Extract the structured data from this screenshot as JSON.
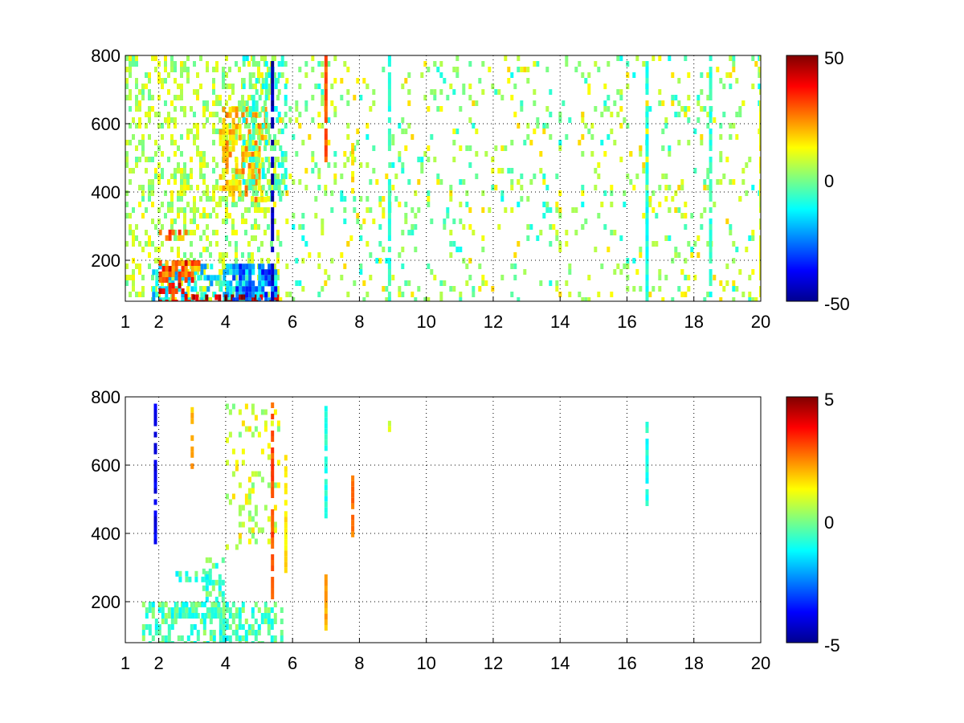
{
  "chart_data": [
    {
      "type": "heatmap",
      "title": "",
      "xlabel": "",
      "ylabel": "",
      "xlim": [
        1,
        20
      ],
      "ylim": [
        80,
        800
      ],
      "x_ticks": [
        "1",
        "2",
        "4",
        "6",
        "8",
        "10",
        "12",
        "14",
        "16",
        "18",
        "20"
      ],
      "x_tick_values": [
        1,
        2,
        4,
        6,
        8,
        10,
        12,
        14,
        16,
        18,
        20
      ],
      "y_ticks": [
        "200",
        "400",
        "600",
        "800"
      ],
      "y_tick_values": [
        200,
        400,
        600,
        800
      ],
      "grid": true,
      "colormap": "jet",
      "colorbar": {
        "location": "right",
        "clim": [
          -50,
          50
        ],
        "tick_labels": [
          "50",
          "0",
          "-50"
        ],
        "tick_values": [
          50,
          0,
          -50
        ]
      },
      "regions": [
        {
          "x": [
            1.0,
            5.6
          ],
          "y": [
            80,
            800
          ],
          "value": 5,
          "coverage": 0.35
        },
        {
          "x": [
            1.8,
            5.5
          ],
          "y": [
            80,
            190
          ],
          "value": -15,
          "coverage": 0.55
        },
        {
          "x": [
            2.0,
            3.0
          ],
          "y": [
            80,
            200
          ],
          "value": 35,
          "coverage": 0.4
        },
        {
          "x": [
            2.0,
            3.2
          ],
          "y": [
            160,
            200
          ],
          "value": 25,
          "coverage": 0.6
        },
        {
          "x": [
            2.0,
            2.8
          ],
          "y": [
            265,
            290
          ],
          "value": 25,
          "coverage": 0.5
        },
        {
          "x": [
            3.0,
            5.5
          ],
          "y": [
            80,
            100
          ],
          "value": 45,
          "coverage": 0.5
        },
        {
          "x": [
            4.2,
            5.5
          ],
          "y": [
            80,
            190
          ],
          "value": -30,
          "coverage": 0.45
        },
        {
          "x": [
            3.8,
            5.2
          ],
          "y": [
            380,
            650
          ],
          "value": 18,
          "coverage": 0.55
        },
        {
          "x": [
            4.5,
            5.8
          ],
          "y": [
            400,
            800
          ],
          "value": -5,
          "coverage": 0.3
        },
        {
          "x": [
            5.5,
            20.0
          ],
          "y": [
            80,
            800
          ],
          "value": -3,
          "coverage": 0.06
        },
        {
          "x": [
            5.5,
            20.0
          ],
          "y": [
            80,
            800
          ],
          "value": 8,
          "coverage": 0.06
        }
      ],
      "stripes": [
        {
          "x": 5.4,
          "y": [
            80,
            800
          ],
          "value": -45
        },
        {
          "x": 7.0,
          "y": [
            500,
            800
          ],
          "value": 30
        },
        {
          "x": 7.8,
          "y": [
            400,
            560
          ],
          "value": 15
        },
        {
          "x": 8.9,
          "y": [
            80,
            800
          ],
          "value": -8
        },
        {
          "x": 16.6,
          "y": [
            80,
            800
          ],
          "value": 12
        },
        {
          "x": 16.6,
          "y": [
            80,
            800
          ],
          "value": -10
        },
        {
          "x": 18.5,
          "y": [
            80,
            800
          ],
          "value": -8
        },
        {
          "x": 20.0,
          "y": [
            80,
            800
          ],
          "value": 10
        }
      ]
    },
    {
      "type": "heatmap",
      "title": "",
      "xlabel": "",
      "ylabel": "",
      "xlim": [
        1,
        20
      ],
      "ylim": [
        80,
        800
      ],
      "x_ticks": [
        "1",
        "2",
        "4",
        "6",
        "8",
        "10",
        "12",
        "14",
        "16",
        "18",
        "20"
      ],
      "x_tick_values": [
        1,
        2,
        4,
        6,
        8,
        10,
        12,
        14,
        16,
        18,
        20
      ],
      "y_ticks": [
        "200",
        "400",
        "600",
        "800"
      ],
      "y_tick_values": [
        200,
        400,
        600,
        800
      ],
      "grid": true,
      "colormap": "jet",
      "colorbar": {
        "location": "right",
        "clim": [
          -5,
          5
        ],
        "tick_labels": [
          "5",
          "0",
          "-5"
        ],
        "tick_values": [
          5,
          0,
          -5
        ]
      },
      "regions": [
        {
          "x": [
            1.5,
            5.7
          ],
          "y": [
            80,
            200
          ],
          "value": -0.5,
          "coverage": 0.55
        },
        {
          "x": [
            2.5,
            3.8
          ],
          "y": [
            160,
            200
          ],
          "value": -0.5,
          "coverage": 0.7
        },
        {
          "x": [
            2.5,
            3.5
          ],
          "y": [
            260,
            290
          ],
          "value": -0.5,
          "coverage": 0.4
        },
        {
          "x": [
            3.3,
            3.9
          ],
          "y": [
            200,
            330
          ],
          "value": -0.5,
          "coverage": 0.45
        },
        {
          "x": [
            4.0,
            5.6
          ],
          "y": [
            360,
            780
          ],
          "value": 0.8,
          "coverage": 0.18
        }
      ],
      "stripes": [
        {
          "x": 1.9,
          "y": [
            380,
            780
          ],
          "value": -4
        },
        {
          "x": 3.0,
          "y": [
            600,
            770
          ],
          "value": 2
        },
        {
          "x": 5.4,
          "y": [
            220,
            800
          ],
          "value": 3
        },
        {
          "x": 5.8,
          "y": [
            300,
            630
          ],
          "value": 1.5
        },
        {
          "x": 7.0,
          "y": [
            450,
            790
          ],
          "value": -1
        },
        {
          "x": 7.0,
          "y": [
            120,
            280
          ],
          "value": 2
        },
        {
          "x": 7.8,
          "y": [
            400,
            570
          ],
          "value": 2.5
        },
        {
          "x": 8.9,
          "y": [
            700,
            730
          ],
          "value": 1
        },
        {
          "x": 16.6,
          "y": [
            480,
            760
          ],
          "value": -1
        }
      ]
    }
  ]
}
